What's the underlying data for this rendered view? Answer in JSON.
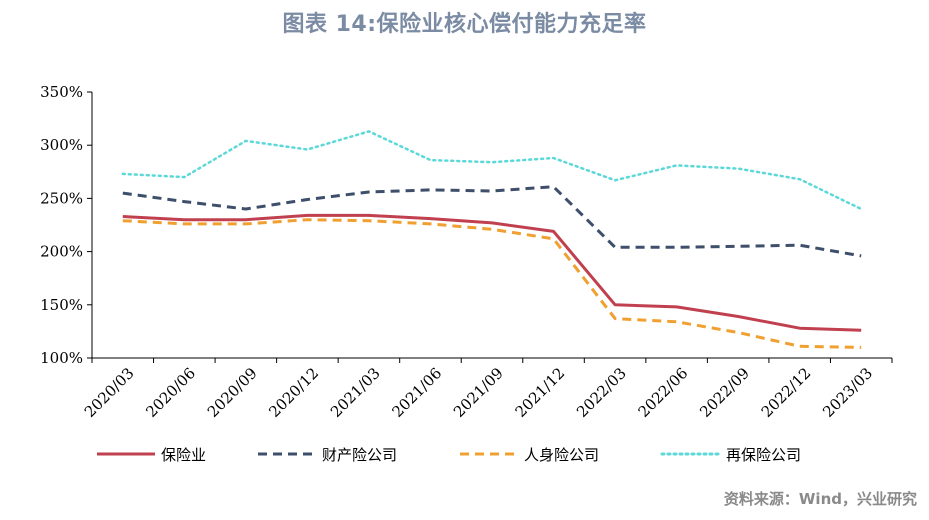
{
  "title": "图表 14:保险业核心偿付能力充足率",
  "source": "资料来源：Wind，兴业研究",
  "chart_data": {
    "type": "line",
    "categories": [
      "2020/03",
      "2020/06",
      "2020/09",
      "2020/12",
      "2021/03",
      "2021/06",
      "2021/09",
      "2021/12",
      "2022/03",
      "2022/06",
      "2022/09",
      "2022/12",
      "2023/03"
    ],
    "ylim": [
      100,
      350
    ],
    "yticks": [
      100,
      150,
      200,
      250,
      300,
      350
    ],
    "y_tick_format": "{v}%",
    "grid": false,
    "legend_position": "bottom",
    "series": [
      {
        "name": "保险业",
        "color": "#c0404f",
        "style": "solid",
        "values": [
          233,
          230,
          230,
          234,
          234,
          231,
          227,
          219,
          150,
          148,
          139,
          128,
          126
        ]
      },
      {
        "name": "财产险公司",
        "color": "#3d4f6b",
        "style": "dashed",
        "values": [
          255,
          247,
          240,
          249,
          256,
          258,
          257,
          261,
          204,
          204,
          205,
          206,
          196
        ]
      },
      {
        "name": "人身险公司",
        "color": "#f0a030",
        "style": "dashed",
        "values": [
          229,
          226,
          226,
          230,
          229,
          226,
          221,
          212,
          137,
          134,
          124,
          111,
          110
        ]
      },
      {
        "name": "再保险公司",
        "color": "#5cd8d8",
        "style": "dotted",
        "values": [
          273,
          270,
          304,
          296,
          313,
          286,
          284,
          288,
          267,
          281,
          278,
          268,
          240
        ]
      }
    ]
  }
}
